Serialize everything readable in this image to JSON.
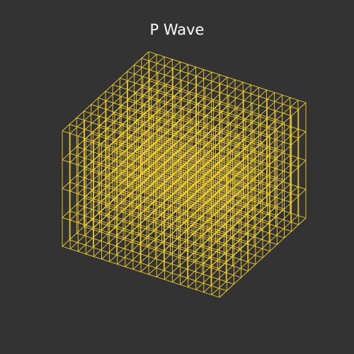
{
  "title": "P Wave",
  "colors": {
    "background": "#333333",
    "line": "#f3d02b",
    "title": "#ffffff"
  },
  "grid": {
    "type": "3d-wireframe-block",
    "rows_along_x": 20,
    "cols_along_y": 12,
    "layers_along_z": 4
  }
}
